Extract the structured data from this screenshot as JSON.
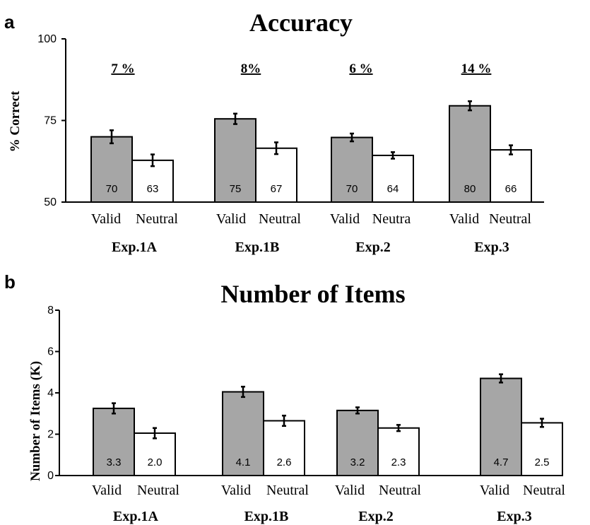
{
  "chart_data": [
    {
      "type": "bar",
      "panel": "a",
      "title": "Accuracy",
      "ylabel": "% Correct",
      "ylim": [
        50,
        100
      ],
      "yticks": [
        "50",
        "75",
        "100"
      ],
      "groups": [
        "Exp.1A",
        "Exp.1B",
        "Exp.2",
        "Exp.3"
      ],
      "conditions": [
        [
          "Valid",
          "Neutral"
        ],
        [
          "Valid",
          "Neutral"
        ],
        [
          "Valid",
          "Neutra"
        ],
        [
          "Valid",
          "Neutral"
        ]
      ],
      "series": [
        {
          "name": "Valid",
          "values": [
            70,
            75.5,
            69.8,
            79.5
          ],
          "errors": [
            2.0,
            1.6,
            1.2,
            1.4
          ],
          "labels": [
            "70",
            "75",
            "70",
            "80"
          ],
          "color": "#a6a6a6"
        },
        {
          "name": "Neutral",
          "values": [
            62.8,
            66.5,
            64.3,
            66.0
          ],
          "errors": [
            1.8,
            1.8,
            1.0,
            1.4
          ],
          "labels": [
            "63",
            "67",
            "64",
            "66"
          ],
          "color": "#ffffff"
        }
      ],
      "annotations": [
        "7 %",
        "8%",
        "6 %",
        "14 %"
      ]
    },
    {
      "type": "bar",
      "panel": "b",
      "title": "Number of Items",
      "ylabel": "Number of Items (K)",
      "ylim": [
        0,
        8
      ],
      "yticks": [
        "0",
        "2",
        "4",
        "6",
        "8"
      ],
      "groups": [
        "Exp.1A",
        "Exp.1B",
        "Exp.2",
        "Exp.3"
      ],
      "conditions": [
        [
          "Valid",
          "Neutral"
        ],
        [
          "Valid",
          "Neutral"
        ],
        [
          "Valid",
          "Neutral"
        ],
        [
          "Valid",
          "Neutral"
        ]
      ],
      "series": [
        {
          "name": "Valid",
          "values": [
            3.25,
            4.05,
            3.15,
            4.7
          ],
          "errors": [
            0.25,
            0.25,
            0.15,
            0.2
          ],
          "labels": [
            "3.3",
            "4.1",
            "3.2",
            "4.7"
          ],
          "color": "#a6a6a6"
        },
        {
          "name": "Neutral",
          "values": [
            2.05,
            2.65,
            2.3,
            2.55
          ],
          "errors": [
            0.25,
            0.25,
            0.15,
            0.2
          ],
          "labels": [
            "2.0",
            "2.6",
            "2.3",
            "2.5"
          ],
          "color": "#ffffff"
        }
      ],
      "annotations": []
    }
  ]
}
